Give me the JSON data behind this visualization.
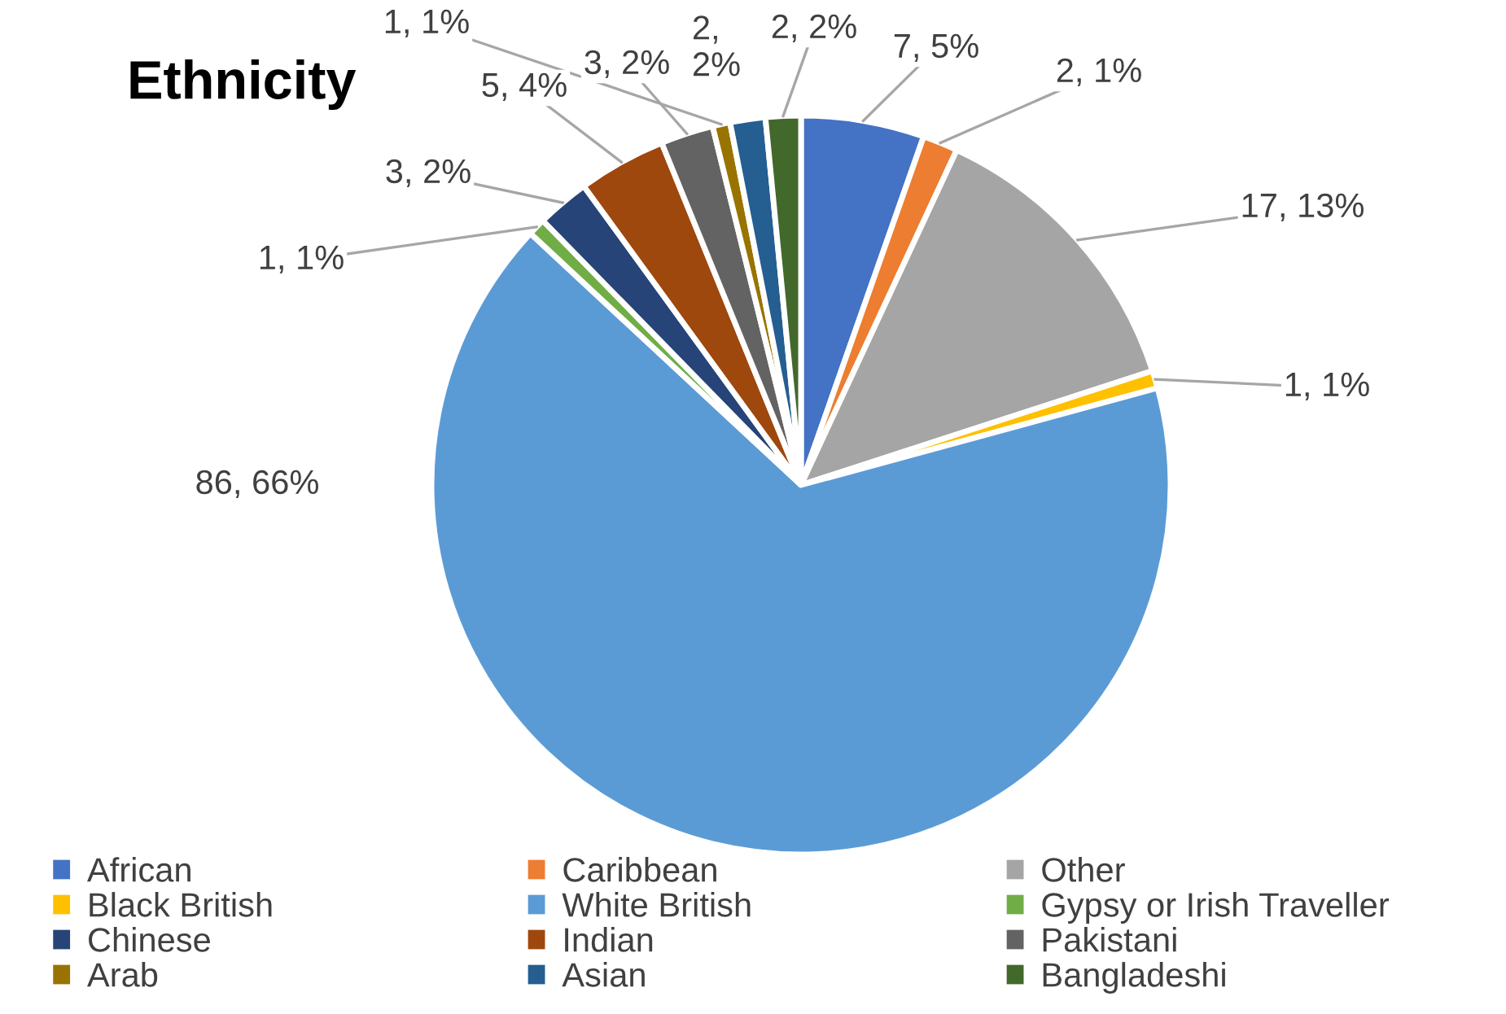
{
  "chart_data": {
    "type": "pie",
    "title": "Ethnicity",
    "categories": [
      "African",
      "Caribbean",
      "Other",
      "Black British",
      "White British",
      "Gypsy or Irish Traveller",
      "Chinese",
      "Indian",
      "Pakistani",
      "Arab",
      "Asian",
      "Bangladeshi"
    ],
    "values": [
      7,
      2,
      17,
      1,
      86,
      1,
      3,
      5,
      3,
      1,
      2,
      2
    ],
    "colors": [
      "#4472c4",
      "#ed7d31",
      "#a5a5a5",
      "#ffc000",
      "#5b9bd5",
      "#70ad47",
      "#264478",
      "#9e480e",
      "#636363",
      "#997300",
      "#255e91",
      "#43682b"
    ],
    "value_labels": [
      "7, 5%",
      "2, 1%",
      "17, 13%",
      "1, 1%",
      "86, 66%",
      "1, 1%",
      "3, 2%",
      "5, 4%",
      "3, 2%",
      "1, 1%",
      "2,\n2%",
      "2, 2%"
    ],
    "legend": "bottom"
  }
}
